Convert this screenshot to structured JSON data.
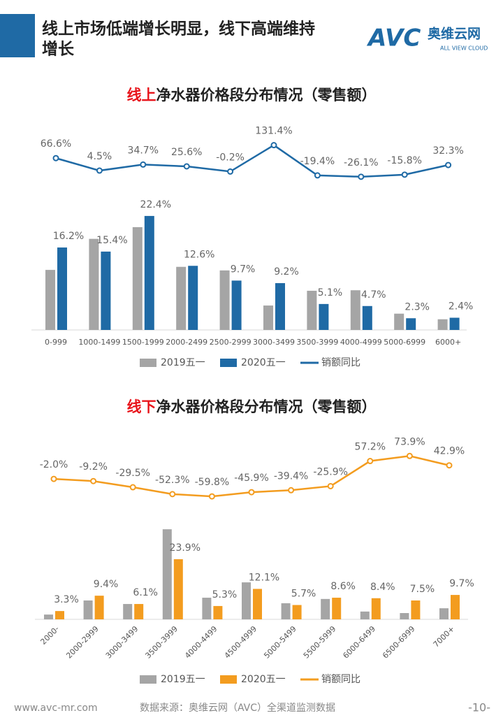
{
  "header": {
    "title_lines": [
      "线上市场低端增长明显，线下高端维持",
      "增长"
    ],
    "logo": "AVC",
    "logo_name": "奥维云网",
    "logo_sub": "ALL VIEW CLOUD"
  },
  "chart_data": [
    {
      "type": "bar_line",
      "title": [
        "线上",
        "净水器价格段分布情况（零售额）"
      ],
      "categories": [
        "0-999",
        "1000-1499",
        "1500-1999",
        "2000-2499",
        "2500-2999",
        "3000-3499",
        "3500-3999",
        "4000-4999",
        "5000-6999",
        "6000+"
      ],
      "ylim": [
        0,
        25
      ],
      "y2lim": [
        -100,
        200
      ],
      "series": [
        {
          "name": "2019五一",
          "color": "#a5a5a5",
          "values": [
            11.8,
            17.9,
            20.2,
            12.4,
            11.7,
            4.8,
            7.7,
            7.8,
            3.2,
            2.1
          ]
        },
        {
          "name": "2020五一",
          "color": "#1f6aa5",
          "values": [
            16.2,
            15.4,
            22.4,
            12.6,
            9.7,
            9.2,
            5.1,
            4.7,
            2.3,
            2.4
          ],
          "value_labels": [
            "16.2%",
            "15.4%",
            "22.4%",
            "12.6%",
            "9.7%",
            "9.2%",
            "5.1%",
            "4.7%",
            "2.3%",
            "2.4%"
          ]
        },
        {
          "name": "销额同比",
          "color": "#1f6aa5",
          "axis": "y2",
          "values": [
            66.6,
            4.5,
            34.7,
            25.6,
            -0.2,
            131.4,
            -19.4,
            -26.1,
            -15.8,
            32.3
          ],
          "value_labels": [
            "66.6%",
            "4.5%",
            "34.7%",
            "25.6%",
            "-0.2%",
            "131.4%",
            "-19.4%",
            "-26.1%",
            "-15.8%",
            "32.3%"
          ]
        }
      ]
    },
    {
      "type": "bar_line",
      "title": [
        "线下",
        "净水器价格段分布情况（零售额）"
      ],
      "categories": [
        "2000-",
        "2000-2999",
        "3000-3499",
        "3500-3999",
        "4000-4499",
        "4500-4999",
        "5000-5499",
        "5500-5999",
        "6000-6499",
        "6500-6999",
        "7000+"
      ],
      "ylim": [
        0,
        40
      ],
      "y2lim": [
        -100,
        100
      ],
      "series": [
        {
          "name": "2019五一",
          "color": "#a5a5a5",
          "values": [
            1.9,
            7.5,
            6.1,
            35.8,
            8.6,
            14.7,
            6.4,
            8.1,
            3.1,
            2.5,
            4.4
          ]
        },
        {
          "name": "2020五一",
          "color": "#f39c1f",
          "values": [
            3.3,
            9.4,
            6.1,
            23.9,
            5.3,
            12.1,
            5.7,
            8.6,
            8.4,
            7.5,
            9.7
          ],
          "value_labels": [
            "3.3%",
            "9.4%",
            "6.1%",
            "23.9%",
            "5.3%",
            "12.1%",
            "5.7%",
            "8.6%",
            "8.4%",
            "7.5%",
            "9.7%"
          ]
        },
        {
          "name": "销额同比",
          "color": "#f39c1f",
          "axis": "y2",
          "values": [
            -2.0,
            -9.2,
            -29.5,
            -52.3,
            -59.8,
            -45.9,
            -39.4,
            -25.9,
            57.2,
            73.9,
            42.9
          ],
          "value_labels": [
            "-2.0%",
            "-9.2%",
            "-29.5%",
            "-52.3%",
            "-59.8%",
            "-45.9%",
            "-39.4%",
            "-25.9%",
            "57.2%",
            "73.9%",
            "42.9%"
          ]
        }
      ]
    }
  ],
  "footer": {
    "site": "www.avc-mr.com",
    "source": "数据来源：奥维云网（AVC）全渠道监测数据",
    "page": "-10-"
  }
}
